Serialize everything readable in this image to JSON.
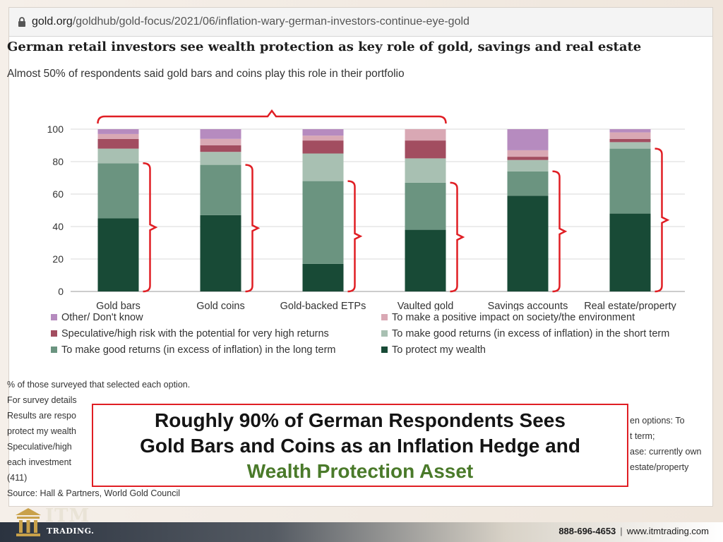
{
  "browser": {
    "url_host": "gold.org",
    "url_path": "/goldhub/gold-focus/2021/06/inflation-wary-german-investors-continue-eye-gold"
  },
  "chart_data": {
    "type": "bar",
    "stacked": true,
    "title": "German retail investors see wealth protection as key role of gold, savings and real estate",
    "subtitle": "Almost 50% of respondents said gold bars and coins play this role in their portfolio",
    "categories": [
      "Gold bars",
      "Gold coins",
      "Gold-backed ETPs",
      "Vaulted gold",
      "Savings accounts",
      "Real estate/property"
    ],
    "ylim": [
      0,
      100
    ],
    "yticks": [
      0,
      20,
      40,
      60,
      80,
      100
    ],
    "grid": true,
    "legend_position": "bottom",
    "series": [
      {
        "name": "To protect my wealth",
        "color": "#184a36",
        "values": [
          45,
          47,
          17,
          38,
          59,
          48
        ]
      },
      {
        "name": "To make good returns (in excess of inflation) in the long term",
        "color": "#6b9480",
        "values": [
          34,
          31,
          51,
          29,
          15,
          40
        ]
      },
      {
        "name": "To make good returns (in excess of inflation) in the short term",
        "color": "#a8c0b2",
        "values": [
          9,
          8,
          17,
          15,
          7,
          4
        ]
      },
      {
        "name": "Speculative/high risk with the potential for very high returns",
        "color": "#a24d60",
        "values": [
          6,
          4,
          8,
          11,
          2,
          2
        ]
      },
      {
        "name": "To make a positive impact on society/the environment",
        "color": "#d9a8b4",
        "values": [
          3,
          4,
          3,
          7,
          4,
          4
        ]
      },
      {
        "name": "Other/ Don't know",
        "color": "#b68bbf",
        "values": [
          3,
          6,
          4,
          0,
          13,
          2
        ]
      }
    ],
    "legend_order": [
      5,
      4,
      3,
      2,
      1,
      0
    ]
  },
  "notes": {
    "line1": "% of those surveyed that selected each option.",
    "line2": "For survey details",
    "line3": "Results are respo",
    "line3_right": "en options: To",
    "line4": "protect my wealth",
    "line4_right": "t term;",
    "line5": "Speculative/high",
    "line5_right": "ase: currently own",
    "line6": "each investment",
    "line6_right": "estate/property",
    "line7": "(411)",
    "source": "Source: Hall & Partners, World Gold Council"
  },
  "callout": {
    "line1": "Roughly 90% of German Respondents Sees",
    "line2": "Gold Bars and Coins as an Inflation Hedge and",
    "line3": "Wealth Protection Asset"
  },
  "footer": {
    "logo_name": "ITM",
    "logo_sub": "TRADING.",
    "phone": "888-696-4653",
    "separator": "|",
    "website": "www.itmtrading.com"
  },
  "colors": {
    "accent_red": "#e01e24",
    "highlight_green": "#4a7a2a"
  }
}
